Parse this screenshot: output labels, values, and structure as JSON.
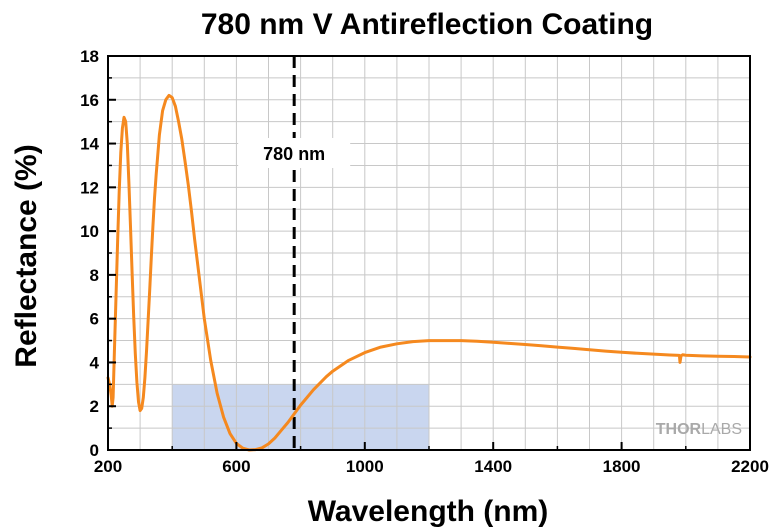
{
  "chart_data": {
    "type": "line",
    "title": "780 nm V Antireflection Coating",
    "xlabel": "Wavelength (nm)",
    "ylabel": "Reflectance (%)",
    "xlim": [
      200,
      2200
    ],
    "ylim": [
      0,
      18
    ],
    "xticks": [
      200,
      600,
      1000,
      1400,
      1800,
      2200
    ],
    "yticks": [
      0,
      2,
      4,
      6,
      8,
      10,
      12,
      14,
      16,
      18
    ],
    "grid": true,
    "line_color": "#f5891f",
    "highlight_color": "#c9d6ef",
    "highlight_region": {
      "x": [
        400,
        1200
      ],
      "y": [
        0,
        3
      ]
    },
    "marker_line": {
      "x": 780,
      "label": "780 nm",
      "style": "dashed"
    },
    "watermark": "THORLABS",
    "series": [
      {
        "x": [
          200,
          205,
          210,
          213,
          216,
          220,
          225,
          230,
          235,
          240,
          245,
          250,
          255,
          260,
          265,
          270,
          275,
          280,
          285,
          290,
          295,
          300,
          305,
          310,
          315,
          320,
          325,
          330,
          335,
          340,
          345,
          350,
          360,
          370,
          380,
          390,
          400,
          410,
          420,
          430,
          440,
          450,
          460,
          470,
          480,
          490,
          500,
          520,
          540,
          560,
          580,
          600,
          620,
          640,
          660,
          680,
          700,
          720,
          740,
          760,
          770,
          780,
          790,
          800,
          820,
          840,
          860,
          880,
          900,
          950,
          1000,
          1050,
          1100,
          1150,
          1200,
          1250,
          1300,
          1350,
          1400,
          1450,
          1500,
          1550,
          1600,
          1650,
          1700,
          1750,
          1800,
          1850,
          1900,
          1950,
          1980,
          1982,
          1985,
          1990,
          2000,
          2050,
          2100,
          2150,
          2200
        ],
        "y": [
          3.3,
          3.0,
          2.5,
          2.0,
          2.4,
          4.5,
          7.0,
          9.5,
          11.8,
          13.6,
          14.7,
          15.2,
          15.0,
          14.0,
          12.2,
          10.2,
          8.1,
          6.1,
          4.4,
          3.1,
          2.2,
          1.8,
          1.9,
          2.4,
          3.3,
          4.5,
          5.9,
          7.3,
          8.8,
          10.2,
          11.5,
          12.6,
          14.4,
          15.5,
          16.0,
          16.2,
          16.1,
          15.7,
          15.0,
          14.2,
          13.2,
          12.1,
          10.9,
          9.6,
          8.4,
          7.2,
          6.0,
          4.1,
          2.6,
          1.5,
          0.75,
          0.3,
          0.08,
          0.0,
          0.02,
          0.1,
          0.28,
          0.55,
          0.9,
          1.25,
          1.45,
          1.65,
          1.85,
          2.05,
          2.4,
          2.75,
          3.05,
          3.35,
          3.6,
          4.1,
          4.45,
          4.7,
          4.85,
          4.95,
          5.0,
          5.0,
          5.0,
          4.97,
          4.92,
          4.87,
          4.82,
          4.76,
          4.7,
          4.64,
          4.58,
          4.52,
          4.47,
          4.42,
          4.38,
          4.34,
          4.32,
          4.0,
          4.3,
          4.35,
          4.33,
          4.3,
          4.28,
          4.27,
          4.25
        ]
      }
    ]
  }
}
